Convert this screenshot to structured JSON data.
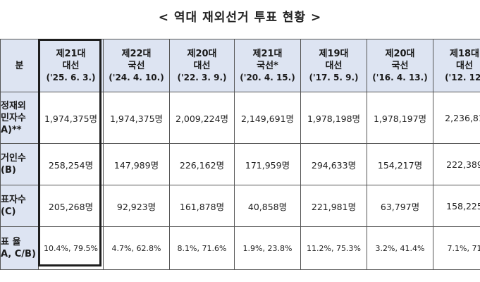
{
  "title": "< 역대 재외선거 투표 현황 >",
  "header": {
    "stub": "분",
    "columns": [
      {
        "name": "제21대",
        "type": "대선",
        "date": "('25. 6. 3.)"
      },
      {
        "name": "제22대",
        "type": "국선",
        "date": "('24. 4. 10.)"
      },
      {
        "name": "제20대",
        "type": "대선",
        "date": "('22. 3. 9.)"
      },
      {
        "name": "제21대",
        "type": "국선*",
        "date": "('20. 4. 15.)"
      },
      {
        "name": "제19대",
        "type": "대선",
        "date": "('17. 5. 9.)"
      },
      {
        "name": "제20대",
        "type": "국선",
        "date": "('16. 4. 13.)"
      },
      {
        "name": "제18대",
        "type": "대선",
        "date": "('12. 12."
      }
    ]
  },
  "rows": [
    {
      "label_lines": [
        "정재외",
        "민자수",
        "A)**"
      ],
      "values": [
        "1,974,375명",
        "1,974,375명",
        "2,009,224명",
        "2,149,691명",
        "1,978,198명",
        "1,978,197명",
        "2,236,81"
      ]
    },
    {
      "label_lines": [
        "거인수",
        "(B)"
      ],
      "values": [
        "258,254명",
        "147,989명",
        "226,162명",
        "171,959명",
        "294,633명",
        "154,217명",
        "222,389"
      ]
    },
    {
      "label_lines": [
        "표자수",
        "(C)"
      ],
      "values": [
        "205,268명",
        "92,923명",
        "161,878명",
        "40,858명",
        "221,981명",
        "63,797명",
        "158,225"
      ]
    },
    {
      "label_lines": [
        "표 율",
        "A, C/B)"
      ],
      "values": [
        "10.4%, 79.5%",
        "4.7%, 62.8%",
        "8.1%, 71.6%",
        "1.9%, 23.8%",
        "11.2%, 75.3%",
        "3.2%, 41.4%",
        "7.1%, 71"
      ]
    }
  ]
}
